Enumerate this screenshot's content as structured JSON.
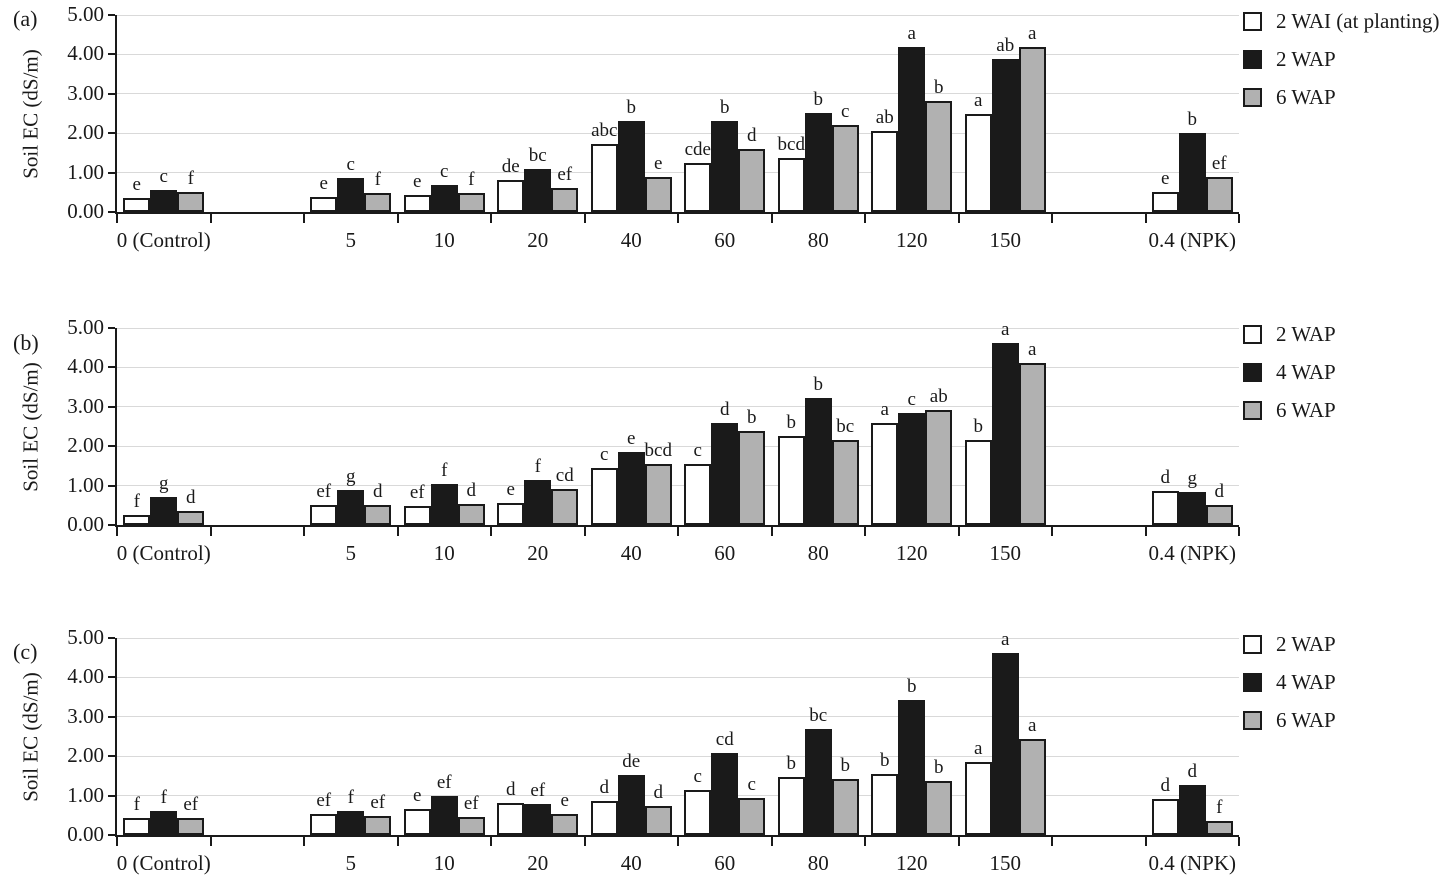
{
  "colors": {
    "bar_white": "#ffffff",
    "bar_black": "#1a1a1a",
    "bar_gray": "#b1b1b1",
    "gridline": "#d9d9d9",
    "axis": "#1a1a1a",
    "text": "#1a1a1a"
  },
  "chart_data": [
    {
      "type": "bar",
      "panel_label": "(a)",
      "ylabel": "Soil EC (dS/m)",
      "ylim": [
        0,
        5
      ],
      "yticks": [
        "5.00",
        "4.00",
        "3.00",
        "2.00",
        "1.00",
        "0.00"
      ],
      "grid": "horizontal",
      "legend_position": "right",
      "categories": [
        "0 (Control)",
        "5",
        "10",
        "20",
        "40",
        "60",
        "80",
        "120",
        "150",
        "0.4 (NPK)"
      ],
      "series": [
        {
          "name": "2 WAI (at planting)",
          "fill": "white",
          "values": [
            0.35,
            0.38,
            0.44,
            0.8,
            1.72,
            1.25,
            1.38,
            2.06,
            2.5,
            0.52
          ],
          "letters": [
            "e",
            "e",
            "e",
            "de",
            "abc",
            "cde",
            "bcd",
            "ab",
            "a",
            "e"
          ]
        },
        {
          "name": "2 WAP",
          "fill": "black",
          "values": [
            0.55,
            0.86,
            0.69,
            1.1,
            2.3,
            2.3,
            2.52,
            4.2,
            3.88,
            2.0
          ],
          "letters": [
            "c",
            "c",
            "c",
            "bc",
            "b",
            "b",
            "b",
            "a",
            "ab",
            "b"
          ]
        },
        {
          "name": "6 WAP",
          "fill": "gray",
          "values": [
            0.5,
            0.49,
            0.47,
            0.62,
            0.9,
            1.6,
            2.2,
            2.83,
            4.18,
            0.88
          ],
          "letters": [
            "f",
            "f",
            "f",
            "ef",
            "e",
            "d",
            "c",
            "b",
            "a",
            "ef"
          ]
        }
      ]
    },
    {
      "type": "bar",
      "panel_label": "(b)",
      "ylabel": "Soil EC (dS/m)",
      "ylim": [
        0,
        5
      ],
      "yticks": [
        "5.00",
        "4.00",
        "3.00",
        "2.00",
        "1.00",
        "0.00"
      ],
      "grid": "horizontal",
      "legend_position": "right",
      "categories": [
        "0 (Control)",
        "5",
        "10",
        "20",
        "40",
        "60",
        "80",
        "120",
        "150",
        "0.4 (NPK)"
      ],
      "series": [
        {
          "name": "2 WAP",
          "fill": "white",
          "values": [
            0.25,
            0.5,
            0.49,
            0.57,
            1.45,
            1.55,
            2.25,
            2.6,
            2.15,
            0.86
          ],
          "letters": [
            "f",
            "ef",
            "ef",
            "e",
            "c",
            "c",
            "b",
            "a",
            "b",
            "d"
          ]
        },
        {
          "name": "4 WAP",
          "fill": "black",
          "values": [
            0.7,
            0.88,
            1.03,
            1.14,
            1.86,
            2.6,
            3.22,
            2.84,
            4.62,
            0.84
          ],
          "letters": [
            "g",
            "g",
            "f",
            "f",
            "e",
            "d",
            "b",
            "c",
            "a",
            "g"
          ]
        },
        {
          "name": "6 WAP",
          "fill": "gray",
          "values": [
            0.36,
            0.5,
            0.53,
            0.91,
            1.54,
            2.38,
            2.16,
            2.91,
            4.1,
            0.52
          ],
          "letters": [
            "d",
            "d",
            "d",
            "cd",
            "bcd",
            "b",
            "bc",
            "ab",
            "a",
            "d"
          ]
        }
      ]
    },
    {
      "type": "bar",
      "panel_label": "(c)",
      "ylabel": "Soil EC (dS/m)",
      "ylim": [
        0,
        5
      ],
      "yticks": [
        "5.00",
        "4.00",
        "3.00",
        "2.00",
        "1.00",
        "0.00"
      ],
      "grid": "horizontal",
      "legend_position": "right",
      "categories": [
        "0 (Control)",
        "5",
        "10",
        "20",
        "40",
        "60",
        "80",
        "120",
        "150",
        "0.4 (NPK)"
      ],
      "series": [
        {
          "name": "2 WAP",
          "fill": "white",
          "values": [
            0.44,
            0.54,
            0.65,
            0.8,
            0.87,
            1.15,
            1.47,
            1.56,
            1.85,
            0.92
          ],
          "letters": [
            "f",
            "ef",
            "e",
            "d",
            "d",
            "c",
            "b",
            "b",
            "a",
            "d"
          ]
        },
        {
          "name": "4 WAP",
          "fill": "black",
          "values": [
            0.62,
            0.6,
            1.0,
            0.79,
            1.53,
            2.07,
            2.68,
            3.43,
            4.63,
            1.26
          ],
          "letters": [
            "f",
            "f",
            "ef",
            "ef",
            "de",
            "cd",
            "bc",
            "b",
            "a",
            "d"
          ]
        },
        {
          "name": "6 WAP",
          "fill": "gray",
          "values": [
            0.43,
            0.49,
            0.45,
            0.53,
            0.74,
            0.93,
            1.41,
            1.36,
            2.44,
            0.36
          ],
          "letters": [
            "ef",
            "ef",
            "ef",
            "e",
            "d",
            "c",
            "b",
            "b",
            "a",
            "f"
          ]
        }
      ]
    }
  ]
}
